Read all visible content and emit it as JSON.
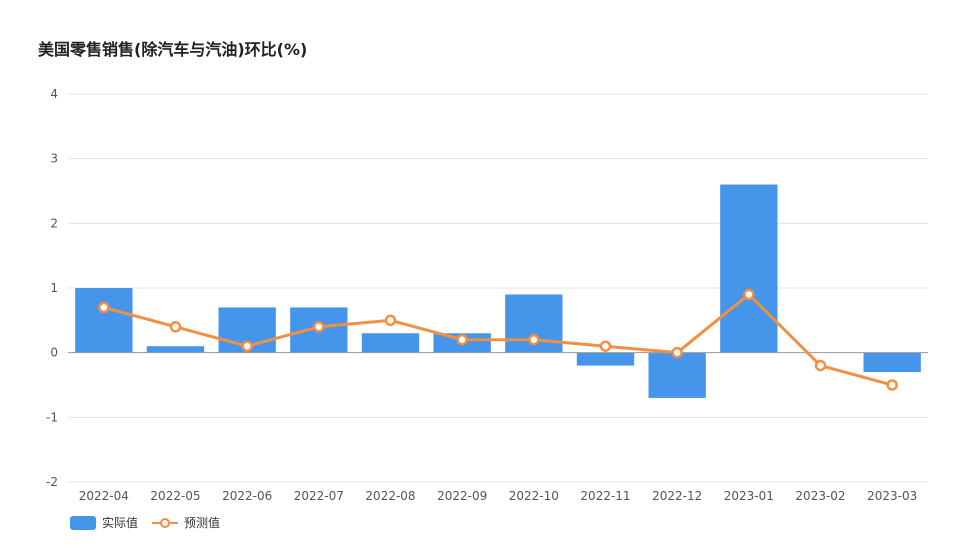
{
  "title": "美国零售销售(除汽车与汽油)环比(%)",
  "colors": {
    "bar": "#4596ea",
    "line": "#f28f43",
    "grid": "#e3e3e3",
    "zero": "#9a9a9a"
  },
  "chart_data": {
    "type": "bar",
    "categories": [
      "2022-04",
      "2022-05",
      "2022-06",
      "2022-07",
      "2022-08",
      "2022-09",
      "2022-10",
      "2022-11",
      "2022-12",
      "2023-01",
      "2023-02",
      "2023-03"
    ],
    "ylim": [
      -2,
      4
    ],
    "yticks": [
      -2,
      -1,
      0,
      1,
      2,
      3,
      4
    ],
    "grid": true,
    "legend_position": "bottom-left",
    "series": [
      {
        "name": "实际值",
        "type": "bar",
        "values": [
          1.0,
          0.1,
          0.7,
          0.7,
          0.3,
          0.3,
          0.9,
          -0.2,
          -0.7,
          2.6,
          null,
          -0.3
        ]
      },
      {
        "name": "预测值",
        "type": "line",
        "values": [
          0.7,
          0.4,
          0.1,
          0.4,
          0.5,
          0.2,
          0.2,
          0.1,
          0.0,
          0.9,
          -0.2,
          -0.5
        ]
      }
    ]
  }
}
